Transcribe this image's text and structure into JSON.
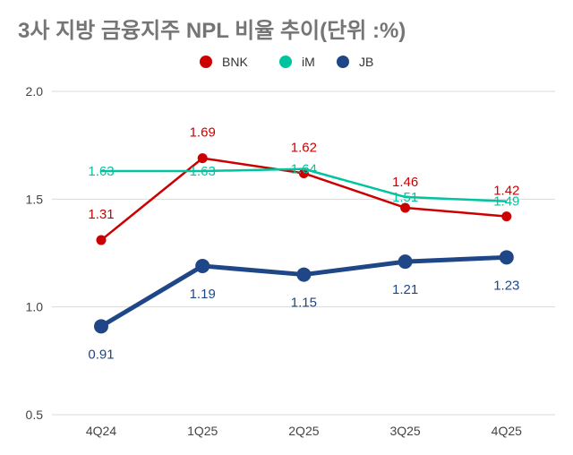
{
  "chart_data": {
    "type": "line",
    "title": "3사 지방 금융지주 NPL 비율 추이(단위 :%)",
    "categories": [
      "4Q24",
      "1Q25",
      "2Q25",
      "3Q25",
      "4Q25"
    ],
    "ylim": [
      0.5,
      2.0
    ],
    "yticks": [
      "0.5",
      "1.0",
      "1.5",
      "2.0"
    ],
    "grid": true,
    "legend_position": "top",
    "series": [
      {
        "name": "BNK",
        "color": "#cc0000",
        "values": [
          1.31,
          1.69,
          1.62,
          1.46,
          1.42
        ],
        "labels": [
          "1.31",
          "1.69",
          "1.62",
          "1.46",
          "1.42"
        ]
      },
      {
        "name": "iM",
        "color": "#00c4a0",
        "values": [
          1.63,
          1.63,
          1.64,
          1.51,
          1.49
        ],
        "labels": [
          "1.63",
          "1.63",
          "1.64",
          "1.51",
          "1.49"
        ]
      },
      {
        "name": "JB",
        "color": "#1f4788",
        "values": [
          0.91,
          1.19,
          1.15,
          1.21,
          1.23
        ],
        "labels": [
          "0.91",
          "1.19",
          "1.15",
          "1.21",
          "1.23"
        ]
      }
    ]
  }
}
